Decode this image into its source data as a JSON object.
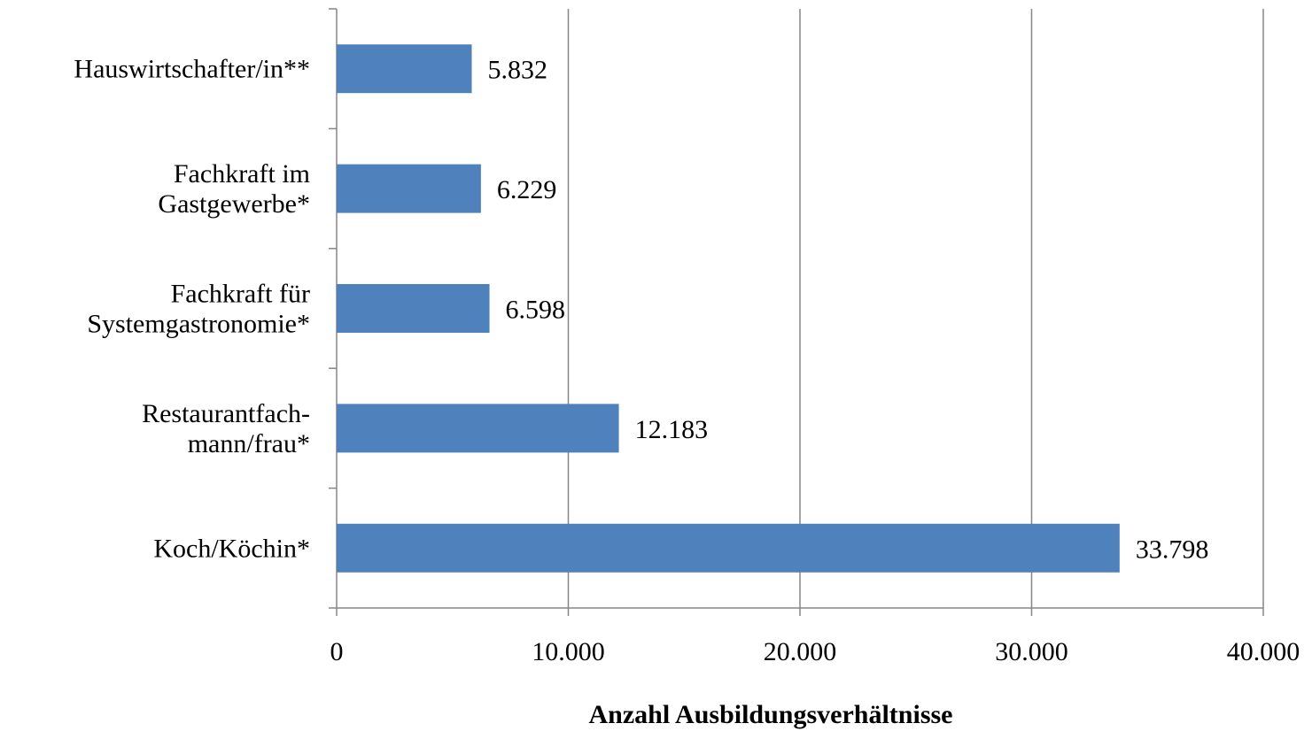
{
  "chart_data": {
    "type": "bar",
    "orientation": "horizontal",
    "categories": [
      [
        "Hauswirtschafter/in**"
      ],
      [
        "Fachkraft im",
        "Gastgewerbe*"
      ],
      [
        "Fachkraft für",
        "Systemgastronomie*"
      ],
      [
        "Restaurantfach-",
        "mann/frau*"
      ],
      [
        "Koch/Köchin*"
      ]
    ],
    "values": [
      5832,
      6229,
      6598,
      12183,
      33798
    ],
    "value_labels": [
      "5.832",
      "6.229",
      "6.598",
      "12.183",
      "33.798"
    ],
    "xlim": [
      0,
      40000
    ],
    "xticks": [
      0,
      10000,
      20000,
      30000,
      40000
    ],
    "xtick_labels": [
      "0",
      "10.000",
      "20.000",
      "30.000",
      "40.000"
    ],
    "xlabel": "Anzahl Ausbildungsverhältnisse",
    "ylabel": "",
    "title": "",
    "grid": "vertical",
    "legend": "none",
    "bar_color": "#4F81BD",
    "grid_color": "#868686",
    "axis_color": "#868686"
  }
}
